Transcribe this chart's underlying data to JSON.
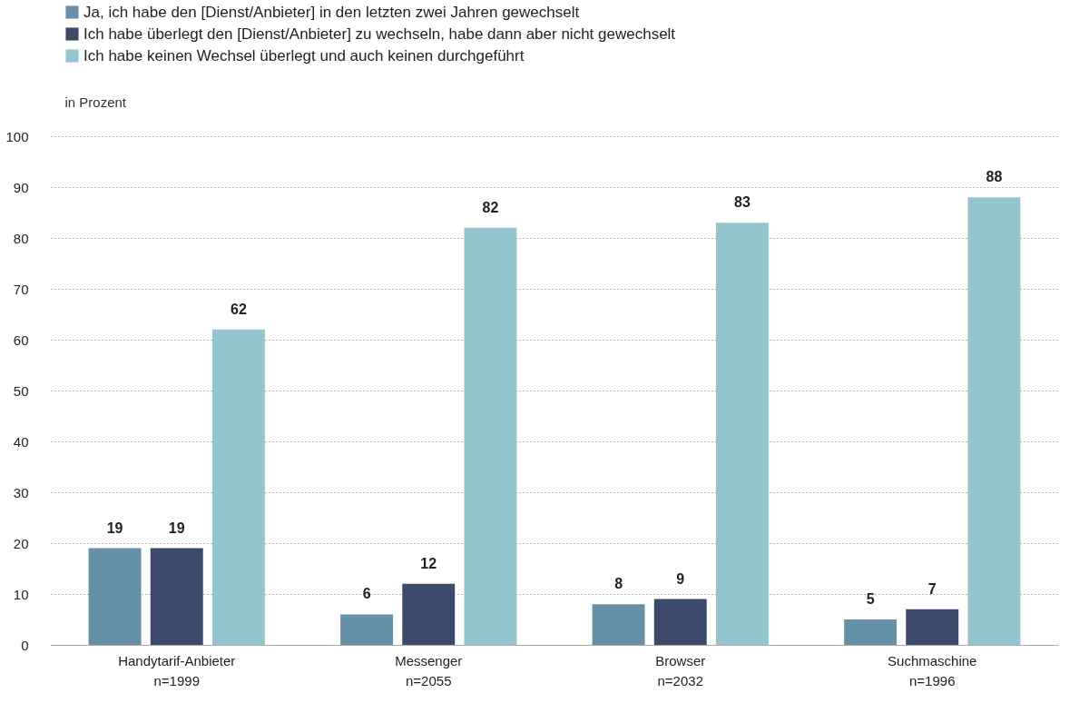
{
  "chart_data": {
    "type": "bar",
    "categories": [
      "Handytarif-Anbieter\nn=1999",
      "Messenger\nn=2055",
      "Browser\nn=2032",
      "Suchmaschine\nn=1996"
    ],
    "series": [
      {
        "name": "Ja, ich habe den [Dienst/Anbieter] in den letzten zwei Jahren gewechselt",
        "color": "#668fa8",
        "values": [
          19,
          6,
          8,
          5
        ]
      },
      {
        "name": "Ich habe überlegt den [Dienst/Anbieter] zu wechseln, habe dann aber nicht gewechselt",
        "color": "#3b4a6b",
        "values": [
          19,
          12,
          9,
          7
        ]
      },
      {
        "name": "Ich habe keinen Wechsel überlegt und auch keinen durchgeführt",
        "color": "#93c6cc",
        "values": [
          62,
          82,
          83,
          88
        ]
      }
    ],
    "ylabel": "in Prozent",
    "ylim": [
      0,
      100
    ],
    "yticks": [
      0,
      10,
      20,
      30,
      40,
      50,
      60,
      70,
      80,
      90,
      100
    ],
    "grid": "y",
    "legend": "top",
    "data_labels": true
  }
}
